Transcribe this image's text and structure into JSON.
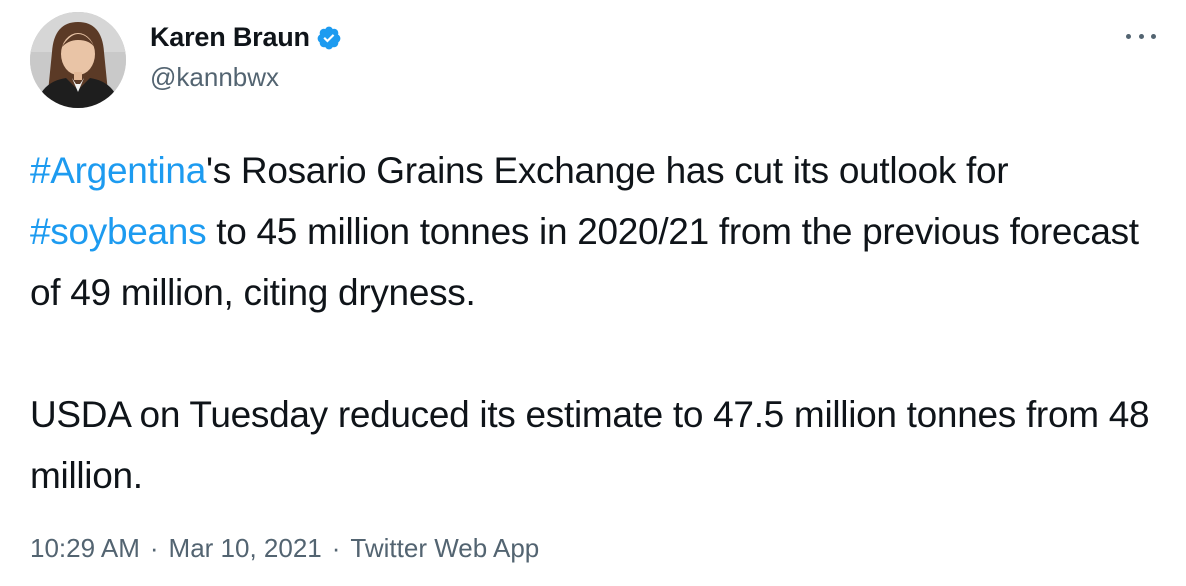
{
  "author": {
    "display_name": "Karen Braun",
    "handle": "@kannbwx",
    "verified": true,
    "verified_color": "#1d9bf0"
  },
  "tweet": {
    "paragraphs": [
      [
        {
          "type": "hashtag",
          "text": "#Argentina"
        },
        {
          "type": "text",
          "text": "'s Rosario Grains Exchange has cut its outlook for "
        },
        {
          "type": "hashtag",
          "text": "#soybeans"
        },
        {
          "type": "text",
          "text": " to 45 million tonnes in 2020/21 from the previous forecast of 49 million, citing dryness."
        }
      ],
      [
        {
          "type": "text",
          "text": "USDA on Tuesday reduced its estimate to 47.5 million tonnes from 48 million."
        }
      ]
    ]
  },
  "meta": {
    "time": "10:29 AM",
    "separator": "·",
    "date": "Mar 10, 2021",
    "source": "Twitter Web App"
  },
  "icons": {
    "more": "more-horizontal-icon",
    "verified": "verified-badge-icon"
  },
  "colors": {
    "link": "#1d9bf0",
    "secondary_text": "#536471",
    "primary_text": "#0f1419"
  }
}
